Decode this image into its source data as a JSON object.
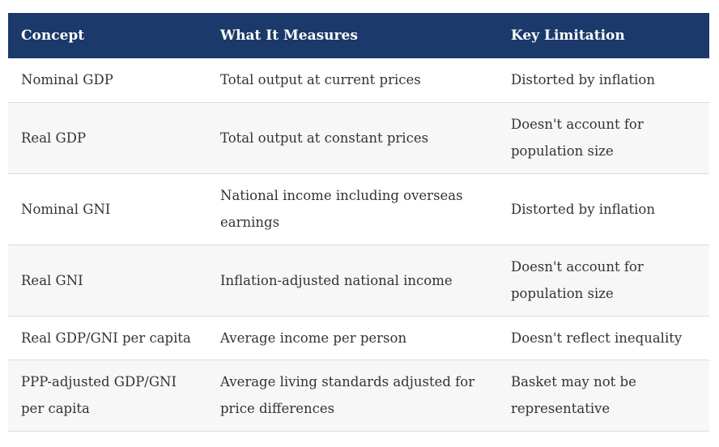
{
  "table": {
    "headers": [
      "Concept",
      "What It Measures",
      "Key Limitation"
    ],
    "rows": [
      [
        "Nominal GDP",
        "Total output at current prices",
        "Distorted by inflation"
      ],
      [
        "Real GDP",
        "Total output at constant prices",
        "Doesn't account for population size"
      ],
      [
        "Nominal GNI",
        "National income including overseas earnings",
        "Distorted by inflation"
      ],
      [
        "Real GNI",
        "Inflation-adjusted national income",
        "Doesn't account for population size"
      ],
      [
        "Real GDP/GNI per capita",
        "Average income per person",
        "Doesn't reflect inequality"
      ],
      [
        "PPP-adjusted GDP/GNI per capita",
        "Average living standards adjusted for price differences",
        "Basket may not be representative"
      ]
    ]
  },
  "colors": {
    "header_bg": "#1b3a6b",
    "header_text": "#ffffff",
    "row_alt_bg": "#f7f7f7",
    "border": "#dcdcdc"
  }
}
